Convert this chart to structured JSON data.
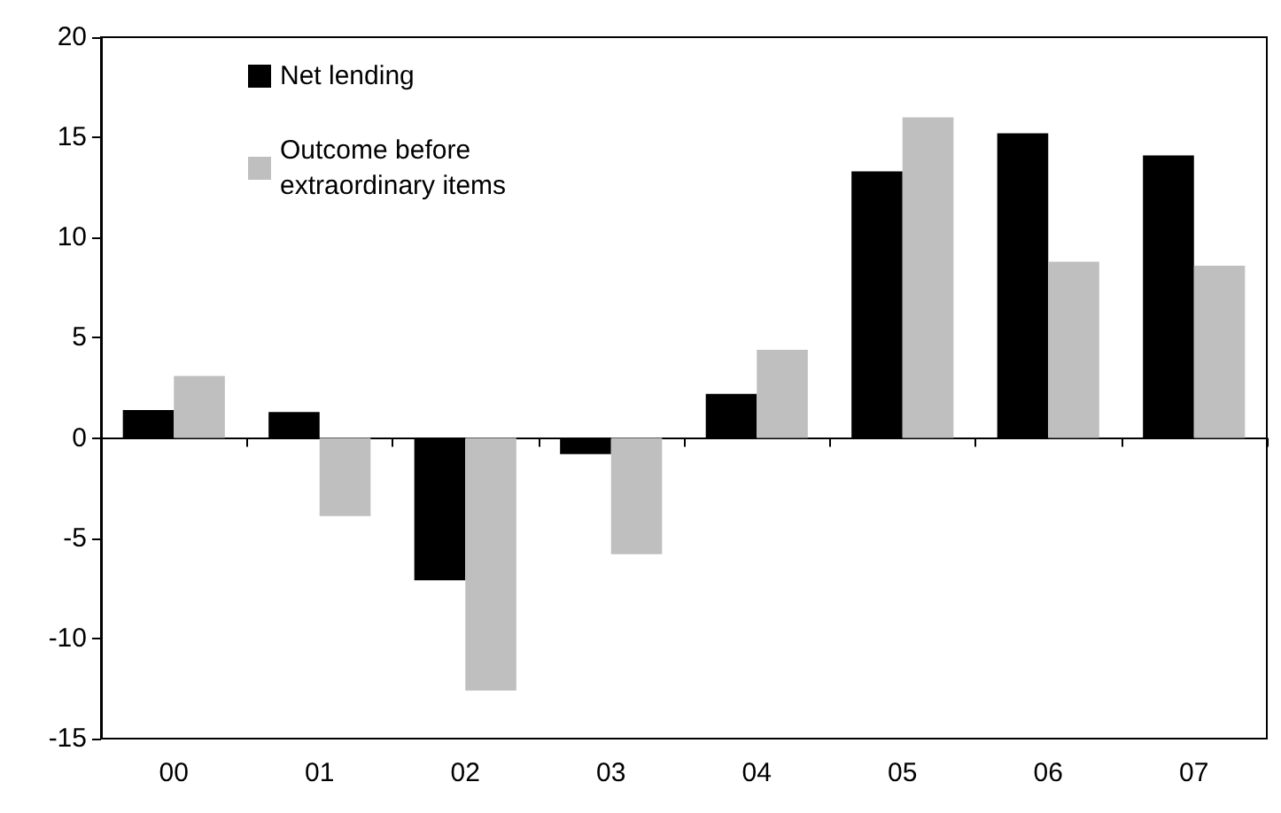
{
  "chart_data": {
    "type": "bar",
    "categories": [
      "00",
      "01",
      "02",
      "03",
      "04",
      "05",
      "06",
      "07"
    ],
    "series": [
      {
        "name": "Net lending",
        "color": "#000000",
        "values": [
          1.4,
          1.3,
          -7.1,
          -0.8,
          2.2,
          13.3,
          15.2,
          14.1
        ]
      },
      {
        "name": "Outcome before extraordinary items",
        "color": "#bfbfbf",
        "values": [
          3.1,
          -3.9,
          -12.6,
          -5.8,
          4.4,
          16.0,
          8.8,
          8.6
        ]
      }
    ],
    "ylim": [
      -15,
      20
    ],
    "yticks": [
      -15,
      -10,
      -5,
      0,
      5,
      10,
      15,
      20
    ],
    "legend": "top left"
  }
}
